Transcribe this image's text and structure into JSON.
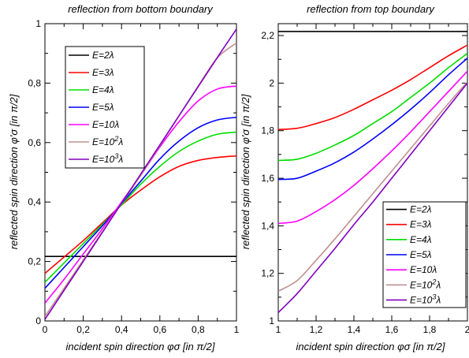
{
  "chart_data": [
    {
      "type": "line",
      "title": "reflection from bottom boundary",
      "xlabel": "incident spin direction φσ [in π/2]",
      "ylabel": "reflected spin direction φ'σ [in π/2]",
      "xlim": [
        0,
        1
      ],
      "ylim": [
        0,
        1
      ],
      "xticks": [
        "0",
        "0,2",
        "0,4",
        "0,6",
        "0,8",
        "1"
      ],
      "yticks": [
        "0",
        "0,2",
        "0,4",
        "0,6",
        "0,8",
        "1"
      ],
      "grid": false,
      "legend_position": "top-left",
      "series": [
        {
          "name": "E=2λ",
          "color": "#000000",
          "x": [
            0,
            0.1,
            0.2,
            0.3,
            0.4,
            0.5,
            0.6,
            0.7,
            0.8,
            0.9,
            1.0
          ],
          "y": [
            0.217,
            0.217,
            0.217,
            0.217,
            0.217,
            0.217,
            0.217,
            0.217,
            0.217,
            0.217,
            0.217
          ]
        },
        {
          "name": "E=3λ",
          "color": "#ff0000",
          "x": [
            0,
            0.1,
            0.2,
            0.3,
            0.4,
            0.5,
            0.6,
            0.7,
            0.8,
            0.9,
            1.0
          ],
          "y": [
            0.16,
            0.215,
            0.27,
            0.33,
            0.39,
            0.44,
            0.485,
            0.52,
            0.54,
            0.55,
            0.555
          ]
        },
        {
          "name": "E=4λ",
          "color": "#00dd00",
          "x": [
            0,
            0.1,
            0.2,
            0.3,
            0.4,
            0.5,
            0.6,
            0.7,
            0.8,
            0.9,
            1.0
          ],
          "y": [
            0.13,
            0.195,
            0.26,
            0.325,
            0.39,
            0.46,
            0.52,
            0.57,
            0.605,
            0.628,
            0.635
          ]
        },
        {
          "name": "E=5λ",
          "color": "#0000ff",
          "x": [
            0,
            0.1,
            0.2,
            0.3,
            0.4,
            0.5,
            0.6,
            0.7,
            0.8,
            0.9,
            1.0
          ],
          "y": [
            0.11,
            0.18,
            0.25,
            0.32,
            0.395,
            0.47,
            0.545,
            0.605,
            0.65,
            0.676,
            0.685
          ]
        },
        {
          "name": "E=10λ",
          "color": "#ff00ff",
          "x": [
            0,
            0.1,
            0.2,
            0.3,
            0.4,
            0.5,
            0.6,
            0.7,
            0.8,
            0.9,
            1.0
          ],
          "y": [
            0.06,
            0.14,
            0.225,
            0.31,
            0.4,
            0.49,
            0.585,
            0.67,
            0.74,
            0.78,
            0.79
          ]
        },
        {
          "name": "E=10²λ",
          "color": "#c09090",
          "x": [
            0,
            0.1,
            0.2,
            0.3,
            0.4,
            0.5,
            0.6,
            0.7,
            0.8,
            0.9,
            1.0
          ],
          "y": [
            0.015,
            0.11,
            0.205,
            0.3,
            0.395,
            0.49,
            0.59,
            0.69,
            0.79,
            0.885,
            0.935
          ]
        },
        {
          "name": "E=10³λ",
          "color": "#8000c0",
          "x": [
            0,
            0.1,
            0.2,
            0.3,
            0.4,
            0.5,
            0.6,
            0.7,
            0.8,
            0.9,
            1.0
          ],
          "y": [
            0.005,
            0.103,
            0.2,
            0.298,
            0.396,
            0.494,
            0.592,
            0.69,
            0.788,
            0.886,
            0.982
          ]
        }
      ]
    },
    {
      "type": "line",
      "title": "reflection from top boundary",
      "xlabel": "incident spin direction φσ [in π/2]",
      "ylabel": "reflected spin direction φ'σ [in π/2]",
      "xlim": [
        1,
        2
      ],
      "ylim": [
        1,
        2.25
      ],
      "xticks": [
        "1",
        "1,2",
        "1,4",
        "1,6",
        "1,8",
        "2"
      ],
      "yticks": [
        "1",
        "1,2",
        "1,4",
        "1,6",
        "1,8",
        "2",
        "2,2"
      ],
      "grid": false,
      "legend_position": "bottom-right",
      "series": [
        {
          "name": "E=2λ",
          "color": "#000000",
          "x": [
            1.0,
            1.1,
            1.2,
            1.3,
            1.4,
            1.5,
            1.6,
            1.7,
            1.8,
            1.9,
            2.0
          ],
          "y": [
            2.217,
            2.217,
            2.217,
            2.217,
            2.217,
            2.217,
            2.217,
            2.217,
            2.217,
            2.217,
            2.217
          ]
        },
        {
          "name": "E=3λ",
          "color": "#ff0000",
          "x": [
            1.0,
            1.1,
            1.2,
            1.3,
            1.4,
            1.5,
            1.6,
            1.7,
            1.8,
            1.9,
            2.0
          ],
          "y": [
            1.805,
            1.81,
            1.83,
            1.855,
            1.89,
            1.93,
            1.97,
            2.015,
            2.065,
            2.115,
            2.16
          ]
        },
        {
          "name": "E=4λ",
          "color": "#00dd00",
          "x": [
            1.0,
            1.1,
            1.2,
            1.3,
            1.4,
            1.5,
            1.6,
            1.7,
            1.8,
            1.9,
            2.0
          ],
          "y": [
            1.675,
            1.68,
            1.705,
            1.74,
            1.78,
            1.83,
            1.88,
            1.94,
            2.0,
            2.065,
            2.125
          ]
        },
        {
          "name": "E=5λ",
          "color": "#0000ff",
          "x": [
            1.0,
            1.1,
            1.2,
            1.3,
            1.4,
            1.5,
            1.6,
            1.7,
            1.8,
            1.9,
            2.0
          ],
          "y": [
            1.595,
            1.6,
            1.63,
            1.665,
            1.71,
            1.765,
            1.825,
            1.89,
            1.96,
            2.035,
            2.105
          ]
        },
        {
          "name": "E=10λ",
          "color": "#ff00ff",
          "x": [
            1.0,
            1.1,
            1.2,
            1.3,
            1.4,
            1.5,
            1.6,
            1.7,
            1.8,
            1.9,
            2.0
          ],
          "y": [
            1.41,
            1.42,
            1.46,
            1.51,
            1.57,
            1.64,
            1.715,
            1.795,
            1.88,
            1.965,
            2.05
          ]
        },
        {
          "name": "E=10²λ",
          "color": "#c09090",
          "x": [
            1.0,
            1.1,
            1.2,
            1.3,
            1.4,
            1.5,
            1.6,
            1.7,
            1.8,
            1.9,
            2.0
          ],
          "y": [
            1.125,
            1.17,
            1.255,
            1.345,
            1.44,
            1.535,
            1.63,
            1.725,
            1.82,
            1.915,
            2.005
          ]
        },
        {
          "name": "E=10³λ",
          "color": "#8000c0",
          "x": [
            1.0,
            1.1,
            1.2,
            1.3,
            1.4,
            1.5,
            1.6,
            1.7,
            1.8,
            1.9,
            2.0
          ],
          "y": [
            1.035,
            1.115,
            1.21,
            1.305,
            1.405,
            1.5,
            1.6,
            1.7,
            1.8,
            1.9,
            2.0
          ]
        }
      ]
    }
  ]
}
